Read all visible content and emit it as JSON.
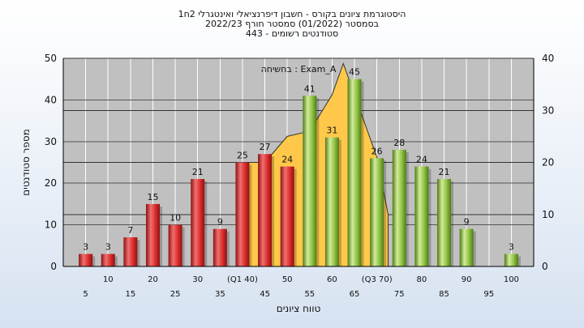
{
  "chart_data": {
    "type": "bar",
    "title_lines": [
      "היסטוגרמת ציונים בקורס - חשבון דיפרנציאלי ואינטגרלי 2ח1",
      "בסמסטר  (01/2022)  סמסטר חורף  2022/23",
      "סטודנטים רשומים - 443"
    ],
    "xlabel": "טווח ציונים",
    "ylabel": "מספר סטודנטים",
    "annotation": "בחשיחה : Exam_A",
    "ylim": [
      0,
      50
    ],
    "y2lim": [
      0,
      40
    ],
    "yticks": [
      0,
      10,
      20,
      30,
      40,
      50
    ],
    "y2ticks": [
      0,
      10,
      20,
      30,
      40
    ],
    "x_tick_labels_top": [
      "10",
      "20",
      "30",
      "(Q1 40)",
      "50",
      "60",
      "(Q3 70)",
      "80",
      "90",
      "100"
    ],
    "x_tick_labels_bottom": [
      "5",
      "15",
      "25",
      "35",
      "45",
      "55",
      "65",
      "75",
      "85",
      "95"
    ],
    "bars": [
      {
        "x": 5,
        "value": 3,
        "group": "red"
      },
      {
        "x": 10,
        "value": 3,
        "group": "red"
      },
      {
        "x": 15,
        "value": 7,
        "group": "red"
      },
      {
        "x": 20,
        "value": 15,
        "group": "red"
      },
      {
        "x": 25,
        "value": 10,
        "group": "red"
      },
      {
        "x": 30,
        "value": 21,
        "group": "red"
      },
      {
        "x": 35,
        "value": 9,
        "group": "red"
      },
      {
        "x": 40,
        "value": 25,
        "group": "red"
      },
      {
        "x": 45,
        "value": 27,
        "group": "red"
      },
      {
        "x": 50,
        "value": 24,
        "group": "red"
      },
      {
        "x": 55,
        "value": 41,
        "group": "green"
      },
      {
        "x": 60,
        "value": 31,
        "group": "green"
      },
      {
        "x": 65,
        "value": 45,
        "group": "green"
      },
      {
        "x": 70,
        "value": 26,
        "group": "green"
      },
      {
        "x": 75,
        "value": 28,
        "group": "green"
      },
      {
        "x": 80,
        "value": 24,
        "group": "green"
      },
      {
        "x": 85,
        "value": 21,
        "group": "green"
      },
      {
        "x": 90,
        "value": 9,
        "group": "green"
      },
      {
        "x": 100,
        "value": 3,
        "group": "green"
      }
    ],
    "area_series_y2": [
      {
        "x": 40,
        "y": 20
      },
      {
        "x": 45,
        "y": 20
      },
      {
        "x": 50,
        "y": 25
      },
      {
        "x": 55,
        "y": 26
      },
      {
        "x": 60,
        "y": 33
      },
      {
        "x": 62.5,
        "y": 39
      },
      {
        "x": 65,
        "y": 33
      },
      {
        "x": 70,
        "y": 21
      },
      {
        "x": 72.5,
        "y": 10
      }
    ],
    "colors": {
      "red": "#d92b2b",
      "red_light": "#f07070",
      "red_dark": "#8e1111",
      "green": "#8cbf3f",
      "green_light": "#d2ec9a",
      "green_dark": "#4f7a16",
      "area": "#ffc84a",
      "plot_bg": "#c0c0c0"
    }
  }
}
